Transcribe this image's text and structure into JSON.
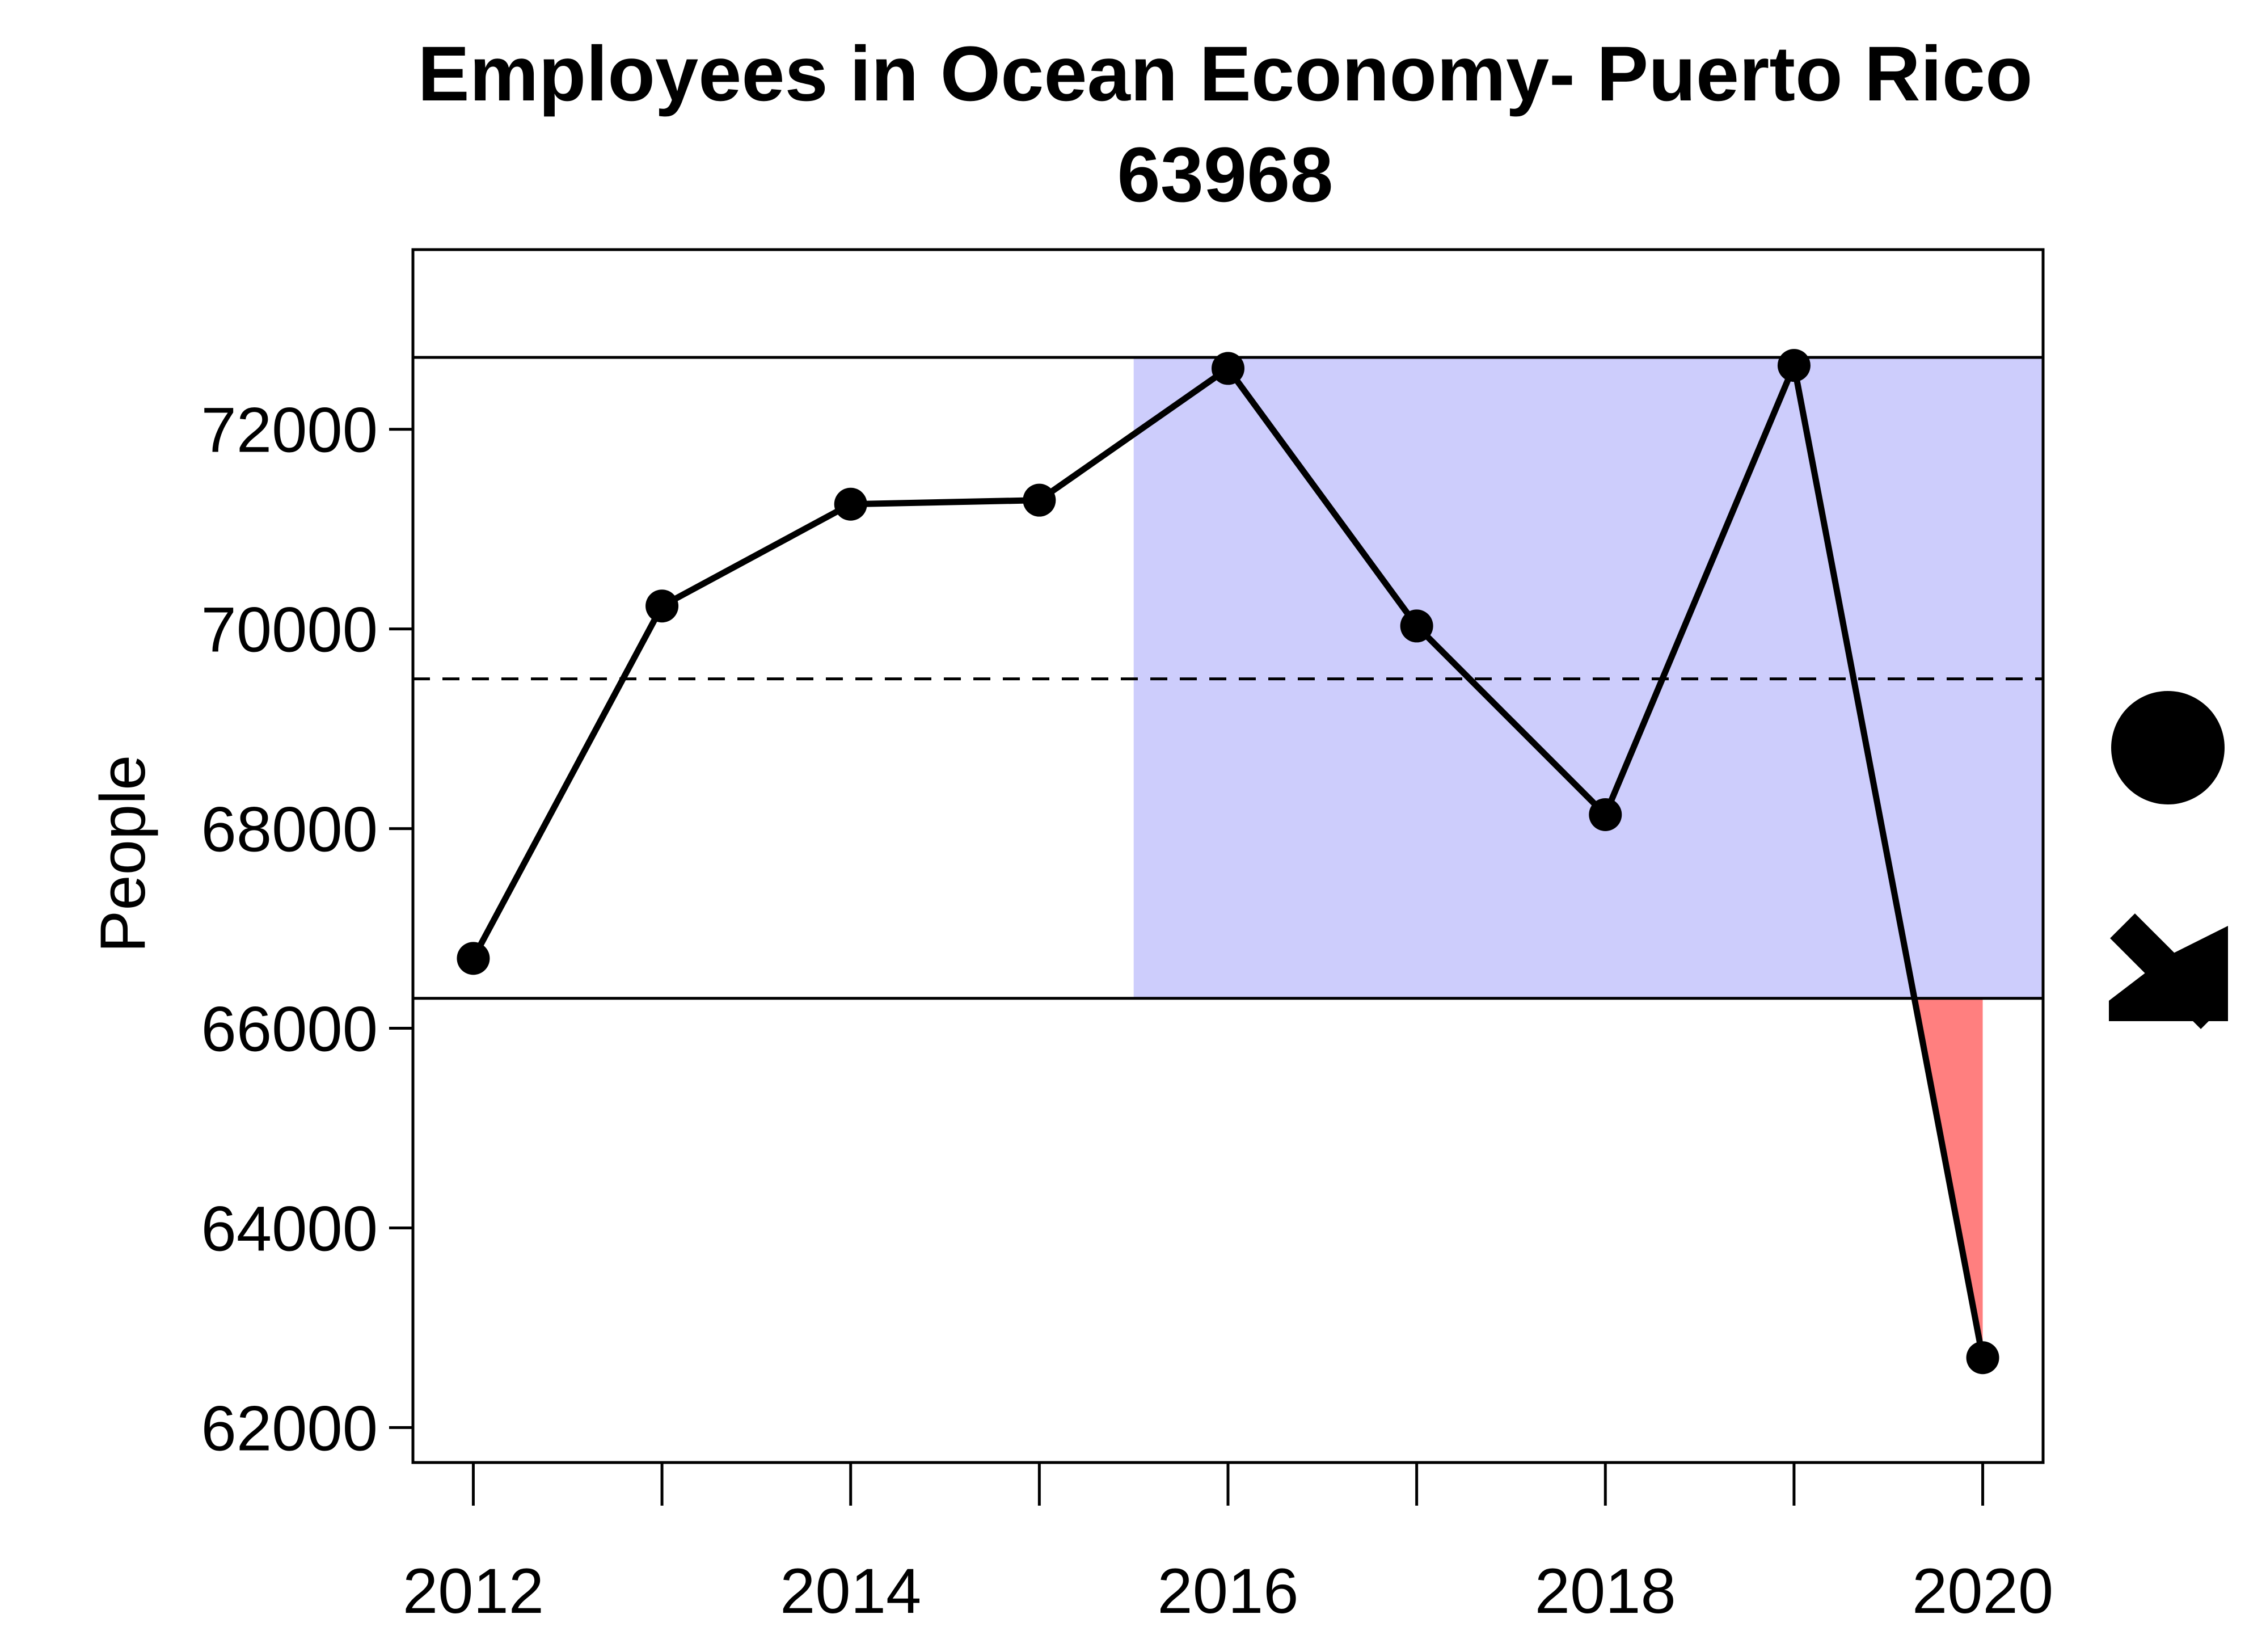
{
  "chart_data": {
    "type": "line",
    "title": "Employees in Ocean Economy- Puerto Rico",
    "subtitle": "63968",
    "xlabel": "",
    "ylabel": "People",
    "xlim": [
      2011.68,
      2020.32
    ],
    "ylim": [
      61650,
      73800
    ],
    "x_ticks": [
      2012,
      2013,
      2014,
      2015,
      2016,
      2017,
      2018,
      2019,
      2020
    ],
    "x_tick_labels": [
      "2012",
      "2014",
      "2016",
      "2018",
      "2020"
    ],
    "y_ticks": [
      62000,
      64000,
      66000,
      68000,
      70000,
      72000
    ],
    "y_tick_labels": [
      "62000",
      "64000",
      "66000",
      "68000",
      "70000",
      "72000"
    ],
    "series": [
      {
        "x": [
          2012,
          2013,
          2014,
          2015,
          2016,
          2017,
          2018,
          2019,
          2020
        ],
        "values": [
          66700,
          70230,
          71250,
          71290,
          72610,
          70030,
          68140,
          72640,
          62700
        ]
      }
    ],
    "reference_lines": {
      "upper": 72720,
      "mean": 69500,
      "lower": 66300
    },
    "recent_window_start": 2015.5,
    "grid": false,
    "trend_indicators": {
      "mean_symbol": "circle",
      "trend_symbol": "arrow-down-right"
    },
    "colors": {
      "recent_window_fill": "#CDCDFC",
      "below_lower_fill": "#FF7F7F",
      "line": "#000000"
    }
  }
}
